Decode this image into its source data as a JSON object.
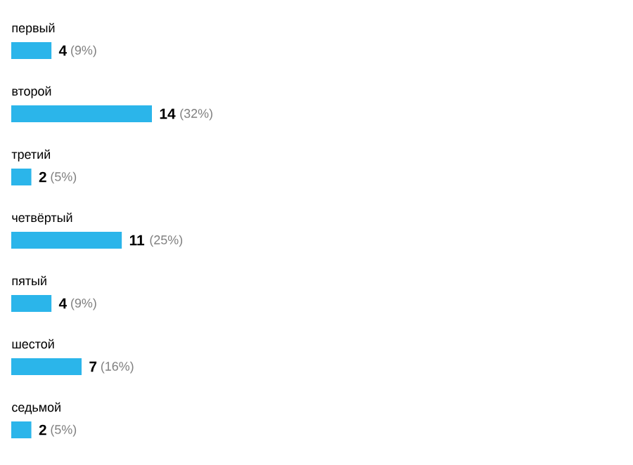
{
  "chart_data": {
    "type": "bar",
    "orientation": "horizontal",
    "categories": [
      "первый",
      "второй",
      "третий",
      "четвёртый",
      "пятый",
      "шестой",
      "седьмой"
    ],
    "values": [
      4,
      14,
      2,
      11,
      4,
      7,
      2
    ],
    "color": "#2bb5ea",
    "data_labels": true,
    "annotations": [
      {
        "text": "(9%)",
        "x": 4,
        "y": "первый"
      },
      {
        "text": "(32%)",
        "x": 14,
        "y": "второй"
      },
      {
        "text": "(5%)",
        "x": 2,
        "y": "третий"
      },
      {
        "text": "(25%)",
        "x": 11,
        "y": "четвёртый"
      },
      {
        "text": "(9%)",
        "x": 4,
        "y": "пятый"
      },
      {
        "text": "(16%)",
        "x": 7,
        "y": "шестой"
      },
      {
        "text": "(5%)",
        "x": 2,
        "y": "седьмой"
      }
    ]
  }
}
